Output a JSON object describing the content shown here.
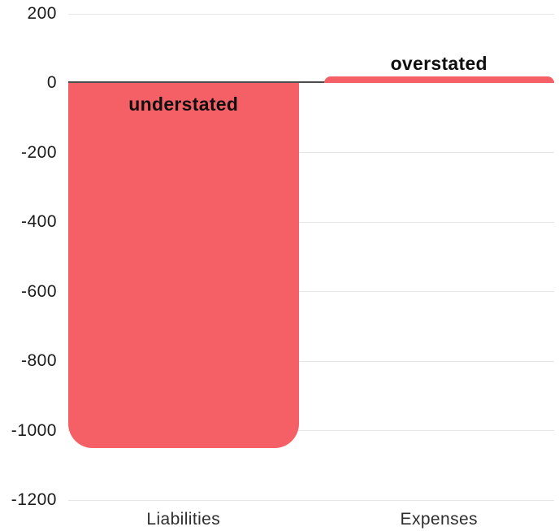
{
  "chart_data": {
    "type": "bar",
    "categories": [
      "Liabilities",
      "Expenses"
    ],
    "values": [
      -1050,
      20
    ],
    "bar_labels": [
      "understated",
      "overstated"
    ],
    "yticks": [
      200,
      0,
      -200,
      -400,
      -600,
      -800,
      -1000,
      -1200
    ],
    "ylim": [
      -1200,
      200
    ],
    "xlabel": "",
    "ylabel": "",
    "title": "",
    "legend_position": "none",
    "grid": "horizontal",
    "bar_color": "#f55f66",
    "grid_color": "#e6e6e6",
    "zero_line_color": "#4d4d4d",
    "tick_text_color": "#1b1b1b",
    "category_text_color": "#2e2e2e",
    "annotation_text_color": "#0f0f0f"
  }
}
